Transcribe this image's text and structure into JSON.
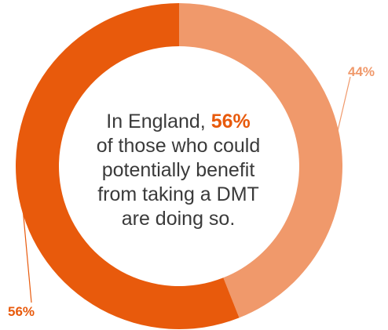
{
  "chart_data": {
    "type": "pie",
    "donut": true,
    "slices": [
      {
        "label": "44%",
        "value": 44,
        "color": "#f0996b"
      },
      {
        "label": "56%",
        "value": 56,
        "color": "#e85a0c"
      }
    ],
    "center_text": {
      "line1_prefix": "In England, ",
      "line1_highlight": "56%",
      "line2": "of those who could",
      "line3": "potentially benefit",
      "line4": "from taking a DMT",
      "line5": "are doing so."
    },
    "highlight_color": "#e85a0c",
    "text_color": "#3a3a3a"
  }
}
